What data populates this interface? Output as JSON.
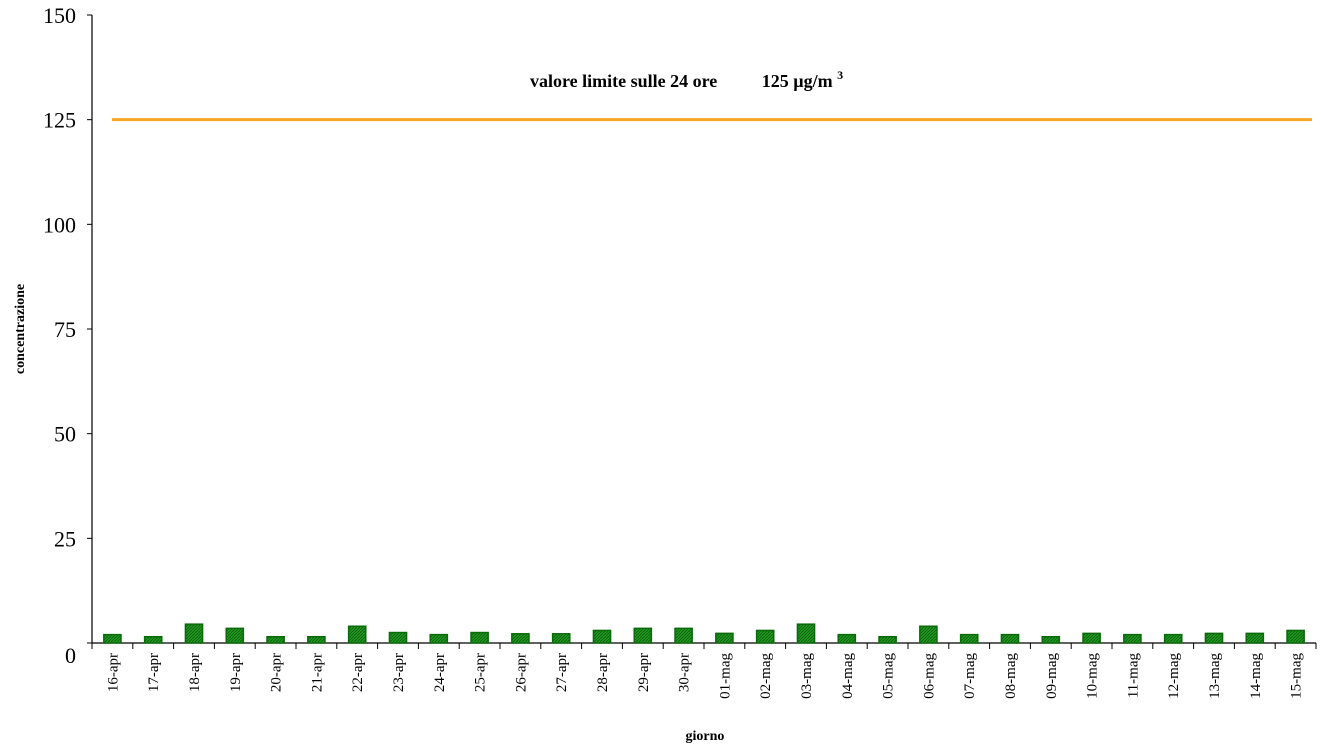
{
  "chart_data": {
    "type": "bar",
    "xlabel": "giorno",
    "ylabel": "concentrazione",
    "ylim": [
      0,
      150
    ],
    "yticks": [
      0,
      25,
      50,
      75,
      100,
      125,
      150
    ],
    "grid": false,
    "categories": [
      "16-apr",
      "17-apr",
      "18-apr",
      "19-apr",
      "20-apr",
      "21-apr",
      "22-apr",
      "23-apr",
      "24-apr",
      "25-apr",
      "26-apr",
      "27-apr",
      "28-apr",
      "29-apr",
      "30-apr",
      "01-mag",
      "02-mag",
      "03-mag",
      "04-mag",
      "05-mag",
      "06-mag",
      "07-mag",
      "08-mag",
      "09-mag",
      "10-mag",
      "11-mag",
      "12-mag",
      "13-mag",
      "14-mag",
      "15-mag"
    ],
    "values": [
      2,
      1.5,
      4.5,
      3.5,
      1.5,
      1.5,
      4,
      2.5,
      2,
      2.5,
      2.2,
      2.2,
      3,
      3.5,
      3.5,
      2.3,
      3,
      4.5,
      2,
      1.5,
      4,
      2,
      2,
      1.5,
      2.3,
      2,
      2,
      2.3,
      2.3,
      3
    ],
    "bar_color": "#1b8a1b",
    "bar_edge_color": "#0a6a0a",
    "limit_line": {
      "value": 125,
      "color": "#f5a623",
      "label": "valore limite sulle 24 ore",
      "value_label": "125 µg/m",
      "superscript": "3"
    }
  }
}
